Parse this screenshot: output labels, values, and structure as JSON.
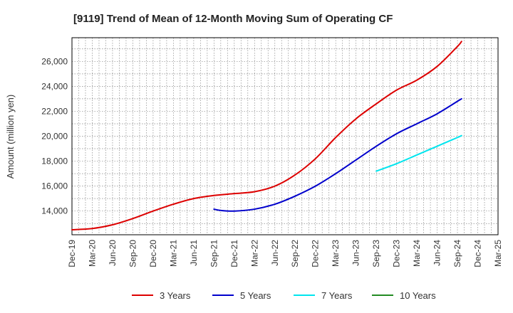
{
  "chart_data": {
    "type": "line",
    "title": "[9119]  Trend of Mean of 12-Month Moving Sum of Operating CF",
    "xlabel": "",
    "ylabel": "Amount (million yen)",
    "ylim": [
      12100,
      27900
    ],
    "yticks": [
      14000,
      16000,
      18000,
      20000,
      22000,
      24000,
      26000
    ],
    "ytick_labels": [
      "14,000",
      "16,000",
      "18,000",
      "20,000",
      "22,000",
      "24,000",
      "26,000"
    ],
    "x_start": "Dec-19",
    "x_months": 63,
    "xticks": [
      {
        "label": "Dec-19",
        "m": 0
      },
      {
        "label": "Mar-20",
        "m": 3
      },
      {
        "label": "Jun-20",
        "m": 6
      },
      {
        "label": "Sep-20",
        "m": 9
      },
      {
        "label": "Dec-20",
        "m": 12
      },
      {
        "label": "Mar-21",
        "m": 15
      },
      {
        "label": "Jun-21",
        "m": 18
      },
      {
        "label": "Sep-21",
        "m": 21
      },
      {
        "label": "Dec-21",
        "m": 24
      },
      {
        "label": "Mar-22",
        "m": 27
      },
      {
        "label": "Jun-22",
        "m": 30
      },
      {
        "label": "Sep-22",
        "m": 33
      },
      {
        "label": "Dec-22",
        "m": 36
      },
      {
        "label": "Mar-23",
        "m": 39
      },
      {
        "label": "Jun-23",
        "m": 42
      },
      {
        "label": "Sep-23",
        "m": 45
      },
      {
        "label": "Dec-23",
        "m": 48
      },
      {
        "label": "Mar-24",
        "m": 51
      },
      {
        "label": "Jun-24",
        "m": 54
      },
      {
        "label": "Sep-24",
        "m": 57
      },
      {
        "label": "Dec-24",
        "m": 60
      },
      {
        "label": "Mar-25",
        "m": 63
      }
    ],
    "grid": true,
    "legend_position": "bottom",
    "series": [
      {
        "name": "3 Years",
        "color": "#dd0000",
        "points": [
          [
            0,
            12500
          ],
          [
            3,
            12600
          ],
          [
            6,
            12900
          ],
          [
            9,
            13400
          ],
          [
            12,
            14000
          ],
          [
            15,
            14550
          ],
          [
            18,
            15000
          ],
          [
            21,
            15250
          ],
          [
            24,
            15400
          ],
          [
            27,
            15550
          ],
          [
            30,
            16000
          ],
          [
            33,
            16900
          ],
          [
            36,
            18200
          ],
          [
            39,
            19900
          ],
          [
            42,
            21400
          ],
          [
            45,
            22600
          ],
          [
            48,
            23700
          ],
          [
            51,
            24500
          ],
          [
            54,
            25600
          ],
          [
            57,
            27200
          ],
          [
            57.6,
            27600
          ]
        ]
      },
      {
        "name": "5 Years",
        "color": "#0000cc",
        "points": [
          [
            21,
            14150
          ],
          [
            22,
            14050
          ],
          [
            24,
            14000
          ],
          [
            27,
            14150
          ],
          [
            30,
            14550
          ],
          [
            33,
            15200
          ],
          [
            36,
            16000
          ],
          [
            39,
            17000
          ],
          [
            42,
            18100
          ],
          [
            45,
            19200
          ],
          [
            48,
            20200
          ],
          [
            51,
            21000
          ],
          [
            54,
            21800
          ],
          [
            57,
            22800
          ],
          [
            57.6,
            23000
          ]
        ]
      },
      {
        "name": "7 Years",
        "color": "#00e5ee",
        "points": [
          [
            45,
            17200
          ],
          [
            48,
            17800
          ],
          [
            51,
            18500
          ],
          [
            54,
            19200
          ],
          [
            57,
            19900
          ],
          [
            57.6,
            20050
          ]
        ]
      },
      {
        "name": "10 Years",
        "color": "#228b22",
        "points": []
      }
    ]
  }
}
